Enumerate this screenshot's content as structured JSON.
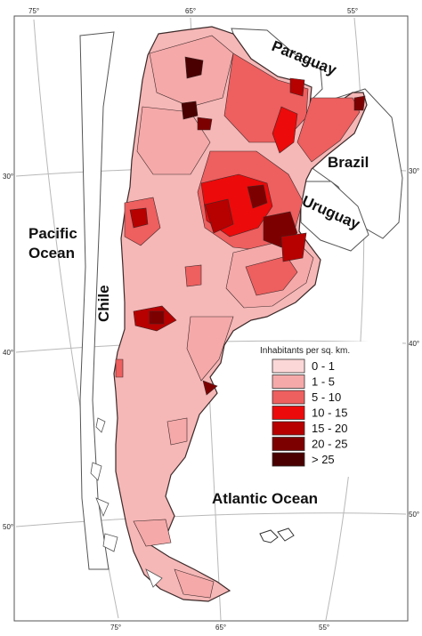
{
  "map": {
    "graticule": {
      "top_lon": [
        "75°",
        "65°",
        "55°"
      ],
      "bottom_lon": [
        "75°",
        "65°",
        "55°"
      ],
      "left_lat": [
        "30°",
        "40°",
        "50°"
      ],
      "right_lat": [
        "30°",
        "40°",
        "50°"
      ]
    },
    "labels": {
      "paraguay": "Paraguay",
      "brazil": "Brazil",
      "uruguay": "Uruguay",
      "pacific_line1": "Pacific",
      "pacific_line2": "Ocean",
      "chile": "Chile",
      "atlantic": "Atlantic Ocean"
    },
    "legend": {
      "title": "Inhabitants per sq. km.",
      "classes": [
        {
          "label": "0 - 1",
          "color": "#fcd7d7"
        },
        {
          "label": "1 - 5",
          "color": "#f5a9a9"
        },
        {
          "label": "5 - 10",
          "color": "#ee5f5f"
        },
        {
          "label": "10 - 15",
          "color": "#ec0a0a"
        },
        {
          "label": "15 - 20",
          "color": "#b70000"
        },
        {
          "label": "20 - 25",
          "color": "#7d0000"
        },
        {
          "label": "> 25",
          "color": "#4a0000"
        }
      ]
    },
    "colors": {
      "land_base": "#f6b7b7",
      "border": "#3c2a2a",
      "neighbor_fill": "#ffffff",
      "graticule": "#b8b8b8"
    }
  }
}
